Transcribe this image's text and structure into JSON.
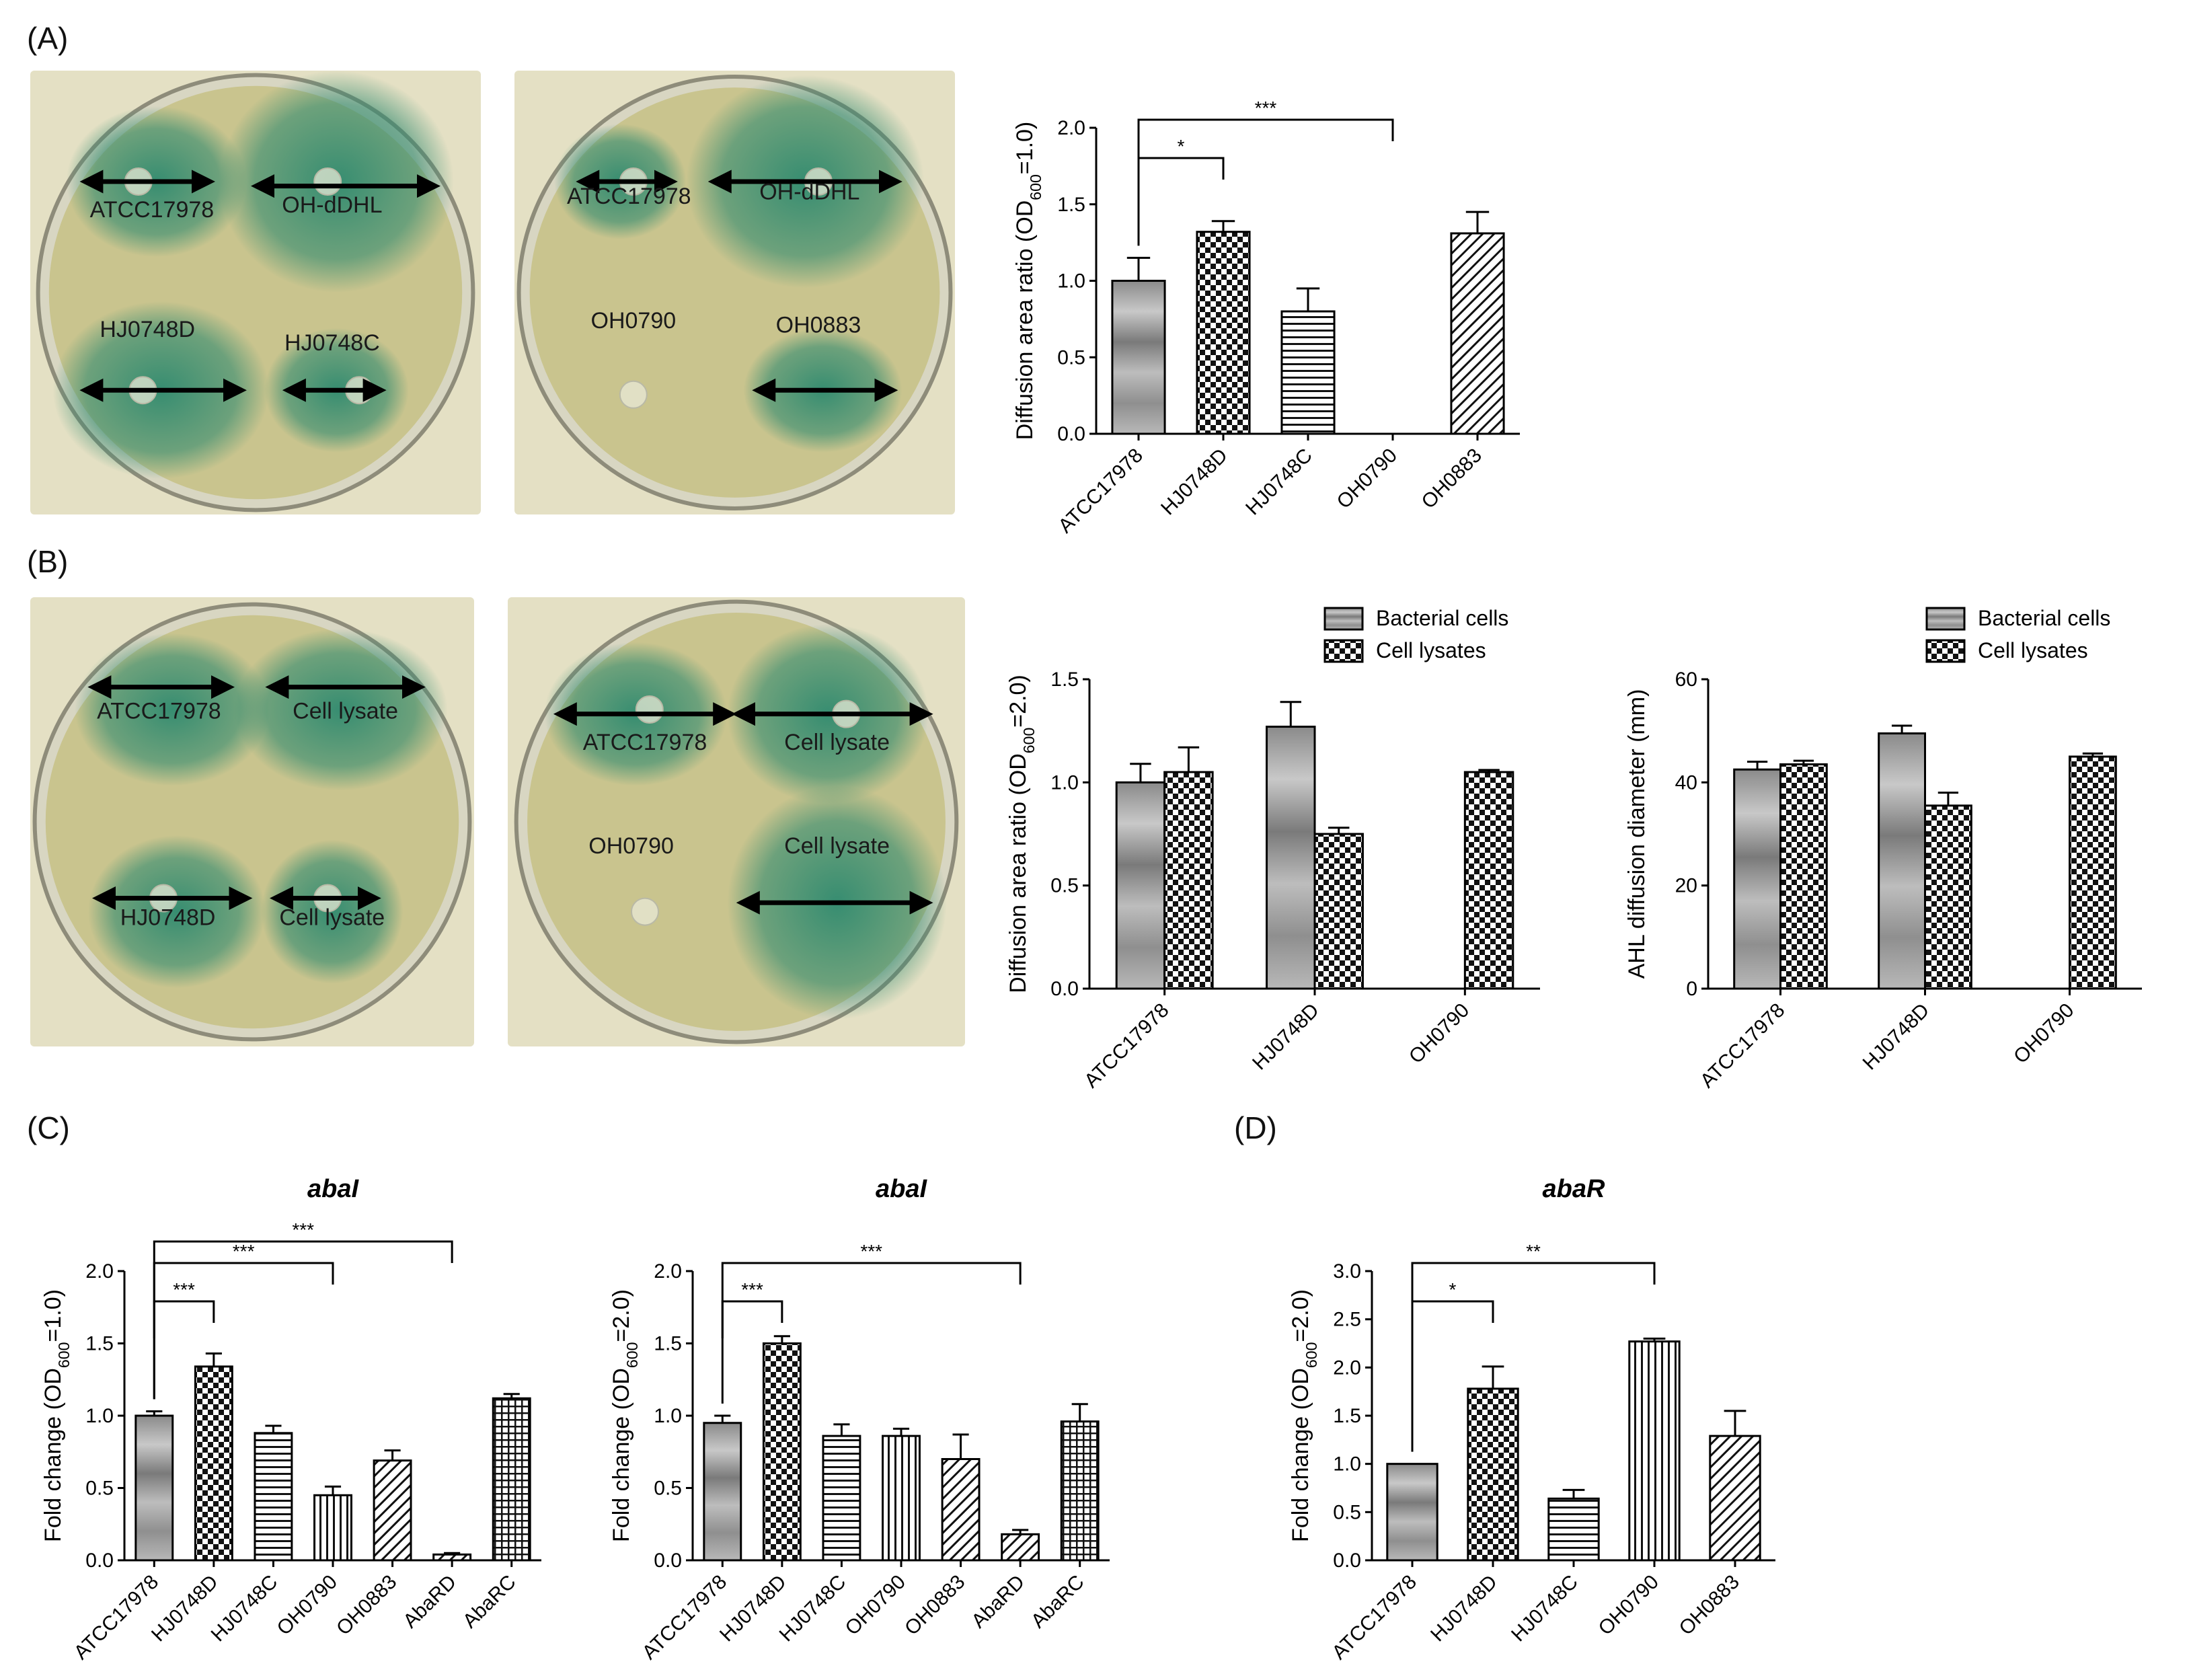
{
  "panels": {
    "a": "(A)",
    "b": "(B)",
    "c": "(C)",
    "d": "(D)"
  },
  "plates": [
    {
      "id": "A1",
      "labels": [
        "ATCC17978",
        "OH-dDHL",
        "HJ0748D",
        "HJ0748C"
      ]
    },
    {
      "id": "A2",
      "labels": [
        "ATCC17978",
        "OH-dDHL",
        "OH0790",
        "OH0883"
      ]
    },
    {
      "id": "B1",
      "labels": [
        "ATCC17978",
        "Cell lysate",
        "HJ0748D",
        "Cell lysate"
      ]
    },
    {
      "id": "B2",
      "labels": [
        "ATCC17978",
        "Cell lysate",
        "OH0790",
        "Cell lysate"
      ]
    }
  ],
  "colors": {
    "plate_bg": "#e4e0c4",
    "agar": "#c9c48e",
    "halo": "#2f8a6f",
    "bar_edge": "#000000"
  },
  "chart_data": [
    {
      "id": "A",
      "type": "bar",
      "categories": [
        "ATCC17978",
        "HJ0748D",
        "HJ0748C",
        "OH0790",
        "OH0883"
      ],
      "values": [
        1.0,
        1.32,
        0.8,
        0,
        1.31
      ],
      "errors": [
        0.15,
        0.07,
        0.15,
        0,
        0.14
      ],
      "patterns": [
        "gradient",
        "checker",
        "hstripe",
        "none",
        "diag"
      ],
      "ylabel": "Diffusion area ratio (OD600=1.0)",
      "ylim": [
        0,
        2.0
      ],
      "yticks": [
        "0.0",
        "0.5",
        "1.0",
        "1.5",
        "2.0"
      ],
      "sig": [
        {
          "from": 0,
          "to": 1,
          "label": "*"
        },
        {
          "from": 0,
          "to": 3,
          "label": "***"
        }
      ]
    },
    {
      "id": "B1",
      "type": "bar",
      "categories": [
        "ATCC17978",
        "HJ0748D",
        "OH0790"
      ],
      "series": [
        {
          "name": "Bacterial cells",
          "values": [
            1.0,
            1.27,
            0
          ],
          "errors": [
            0.09,
            0.12,
            0
          ]
        },
        {
          "name": "Cell lysates",
          "values": [
            1.05,
            0.75,
            1.05
          ],
          "errors": [
            0.12,
            0.03,
            0.01
          ]
        }
      ],
      "ylabel": "Diffusion area ratio (OD600=2.0)",
      "ylim": [
        0,
        1.5
      ],
      "yticks": [
        "0.0",
        "0.5",
        "1.0",
        "1.5"
      ],
      "legend": "top-right"
    },
    {
      "id": "B2",
      "type": "bar",
      "categories": [
        "ATCC17978",
        "HJ0748D",
        "OH0790"
      ],
      "series": [
        {
          "name": "Bacterial cells",
          "values": [
            42.5,
            49.5,
            0
          ],
          "errors": [
            1.5,
            1.5,
            0
          ]
        },
        {
          "name": "Cell lysates",
          "values": [
            43.5,
            35.5,
            45
          ],
          "errors": [
            0.7,
            2.5,
            0.6
          ]
        }
      ],
      "ylabel": "AHL diffusion diameter (mm)",
      "ylim": [
        0,
        60
      ],
      "yticks": [
        "0",
        "20",
        "40",
        "60"
      ],
      "legend": "top-right"
    },
    {
      "id": "C1",
      "type": "bar",
      "title": "abaI",
      "categories": [
        "ATCC17978",
        "HJ0748D",
        "HJ0748C",
        "OH0790",
        "OH0883",
        "AbaRD",
        "AbaRC"
      ],
      "values": [
        1.0,
        1.34,
        0.88,
        0.45,
        0.69,
        0.04,
        1.12
      ],
      "errors": [
        0.03,
        0.09,
        0.05,
        0.06,
        0.07,
        0.01,
        0.03
      ],
      "patterns": [
        "gradient",
        "checker",
        "hstripe",
        "vstripe",
        "diag",
        "diag",
        "grid"
      ],
      "ylabel": "Fold change (OD600=1.0)",
      "ylim": [
        0,
        2.0
      ],
      "yticks": [
        "0.0",
        "0.5",
        "1.0",
        "1.5",
        "2.0"
      ],
      "sig": [
        {
          "from": 0,
          "to": 1,
          "label": "***"
        },
        {
          "from": 0,
          "to": 3,
          "label": "***"
        },
        {
          "from": 0,
          "to": 5,
          "label": "***"
        }
      ]
    },
    {
      "id": "C2",
      "type": "bar",
      "title": "abaI",
      "categories": [
        "ATCC17978",
        "HJ0748D",
        "HJ0748C",
        "OH0790",
        "OH0883",
        "AbaRD",
        "AbaRC"
      ],
      "values": [
        0.95,
        1.5,
        0.86,
        0.86,
        0.7,
        0.18,
        0.96
      ],
      "errors": [
        0.05,
        0.05,
        0.08,
        0.05,
        0.17,
        0.03,
        0.12
      ],
      "patterns": [
        "gradient",
        "checker",
        "hstripe",
        "vstripe",
        "diag",
        "diag",
        "grid"
      ],
      "ylabel": "Fold change (OD600=2.0)",
      "ylim": [
        0,
        2.0
      ],
      "yticks": [
        "0.0",
        "0.5",
        "1.0",
        "1.5",
        "2.0"
      ],
      "sig": [
        {
          "from": 0,
          "to": 1,
          "label": "***"
        },
        {
          "from": 0,
          "to": 5,
          "label": "***"
        }
      ]
    },
    {
      "id": "D",
      "type": "bar",
      "title": "abaR",
      "categories": [
        "ATCC17978",
        "HJ0748D",
        "HJ0748C",
        "OH0790",
        "OH0883"
      ],
      "values": [
        1.0,
        1.78,
        0.64,
        2.27,
        1.29
      ],
      "errors": [
        0.0,
        0.23,
        0.09,
        0.03,
        0.26
      ],
      "patterns": [
        "gradient",
        "checker",
        "hstripe",
        "vstripe",
        "diag"
      ],
      "ylabel": "Fold change (OD600=2.0)",
      "ylim": [
        0,
        3.0
      ],
      "yticks": [
        "0.0",
        "0.5",
        "1.0",
        "1.5",
        "2.0",
        "2.5",
        "3.0"
      ],
      "sig": [
        {
          "from": 0,
          "to": 1,
          "label": "*"
        },
        {
          "from": 0,
          "to": 3,
          "label": "**"
        }
      ]
    }
  ]
}
